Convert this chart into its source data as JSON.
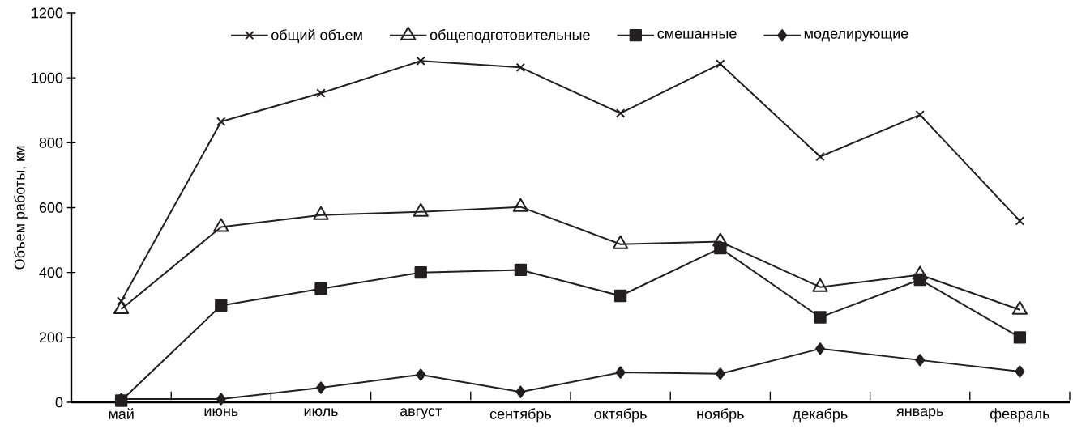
{
  "chart_data": {
    "type": "line",
    "ylabel": "Объем работы, км",
    "categories": [
      "май",
      "июнь",
      "июль",
      "август",
      "сентябрь",
      "октябрь",
      "ноябрь",
      "декабрь",
      "январь",
      "февраль"
    ],
    "ylim": [
      0,
      1200
    ],
    "yticks": [
      0,
      200,
      400,
      600,
      800,
      1000,
      1200
    ],
    "legend": "top",
    "grid": false,
    "line_style": "solid",
    "series": [
      {
        "name": "общий объем",
        "color": "#231f20",
        "marker": "cross",
        "values": [
          312,
          865,
          953,
          1052,
          1032,
          891,
          1043,
          757,
          886,
          559
        ]
      },
      {
        "name": "общеподготовительные",
        "color": "#231f20",
        "marker": "triangle",
        "values": [
          287,
          540,
          577,
          587,
          602,
          487,
          495,
          355,
          393,
          285
        ]
      },
      {
        "name": "смешанные",
        "color": "#231f20",
        "marker": "square",
        "values": [
          5,
          298,
          350,
          400,
          408,
          328,
          475,
          262,
          378,
          200
        ]
      },
      {
        "name": "моделирующие",
        "color": "#231f20",
        "marker": "diamond",
        "values": [
          10,
          10,
          45,
          85,
          32,
          92,
          88,
          165,
          130,
          95
        ]
      }
    ]
  }
}
